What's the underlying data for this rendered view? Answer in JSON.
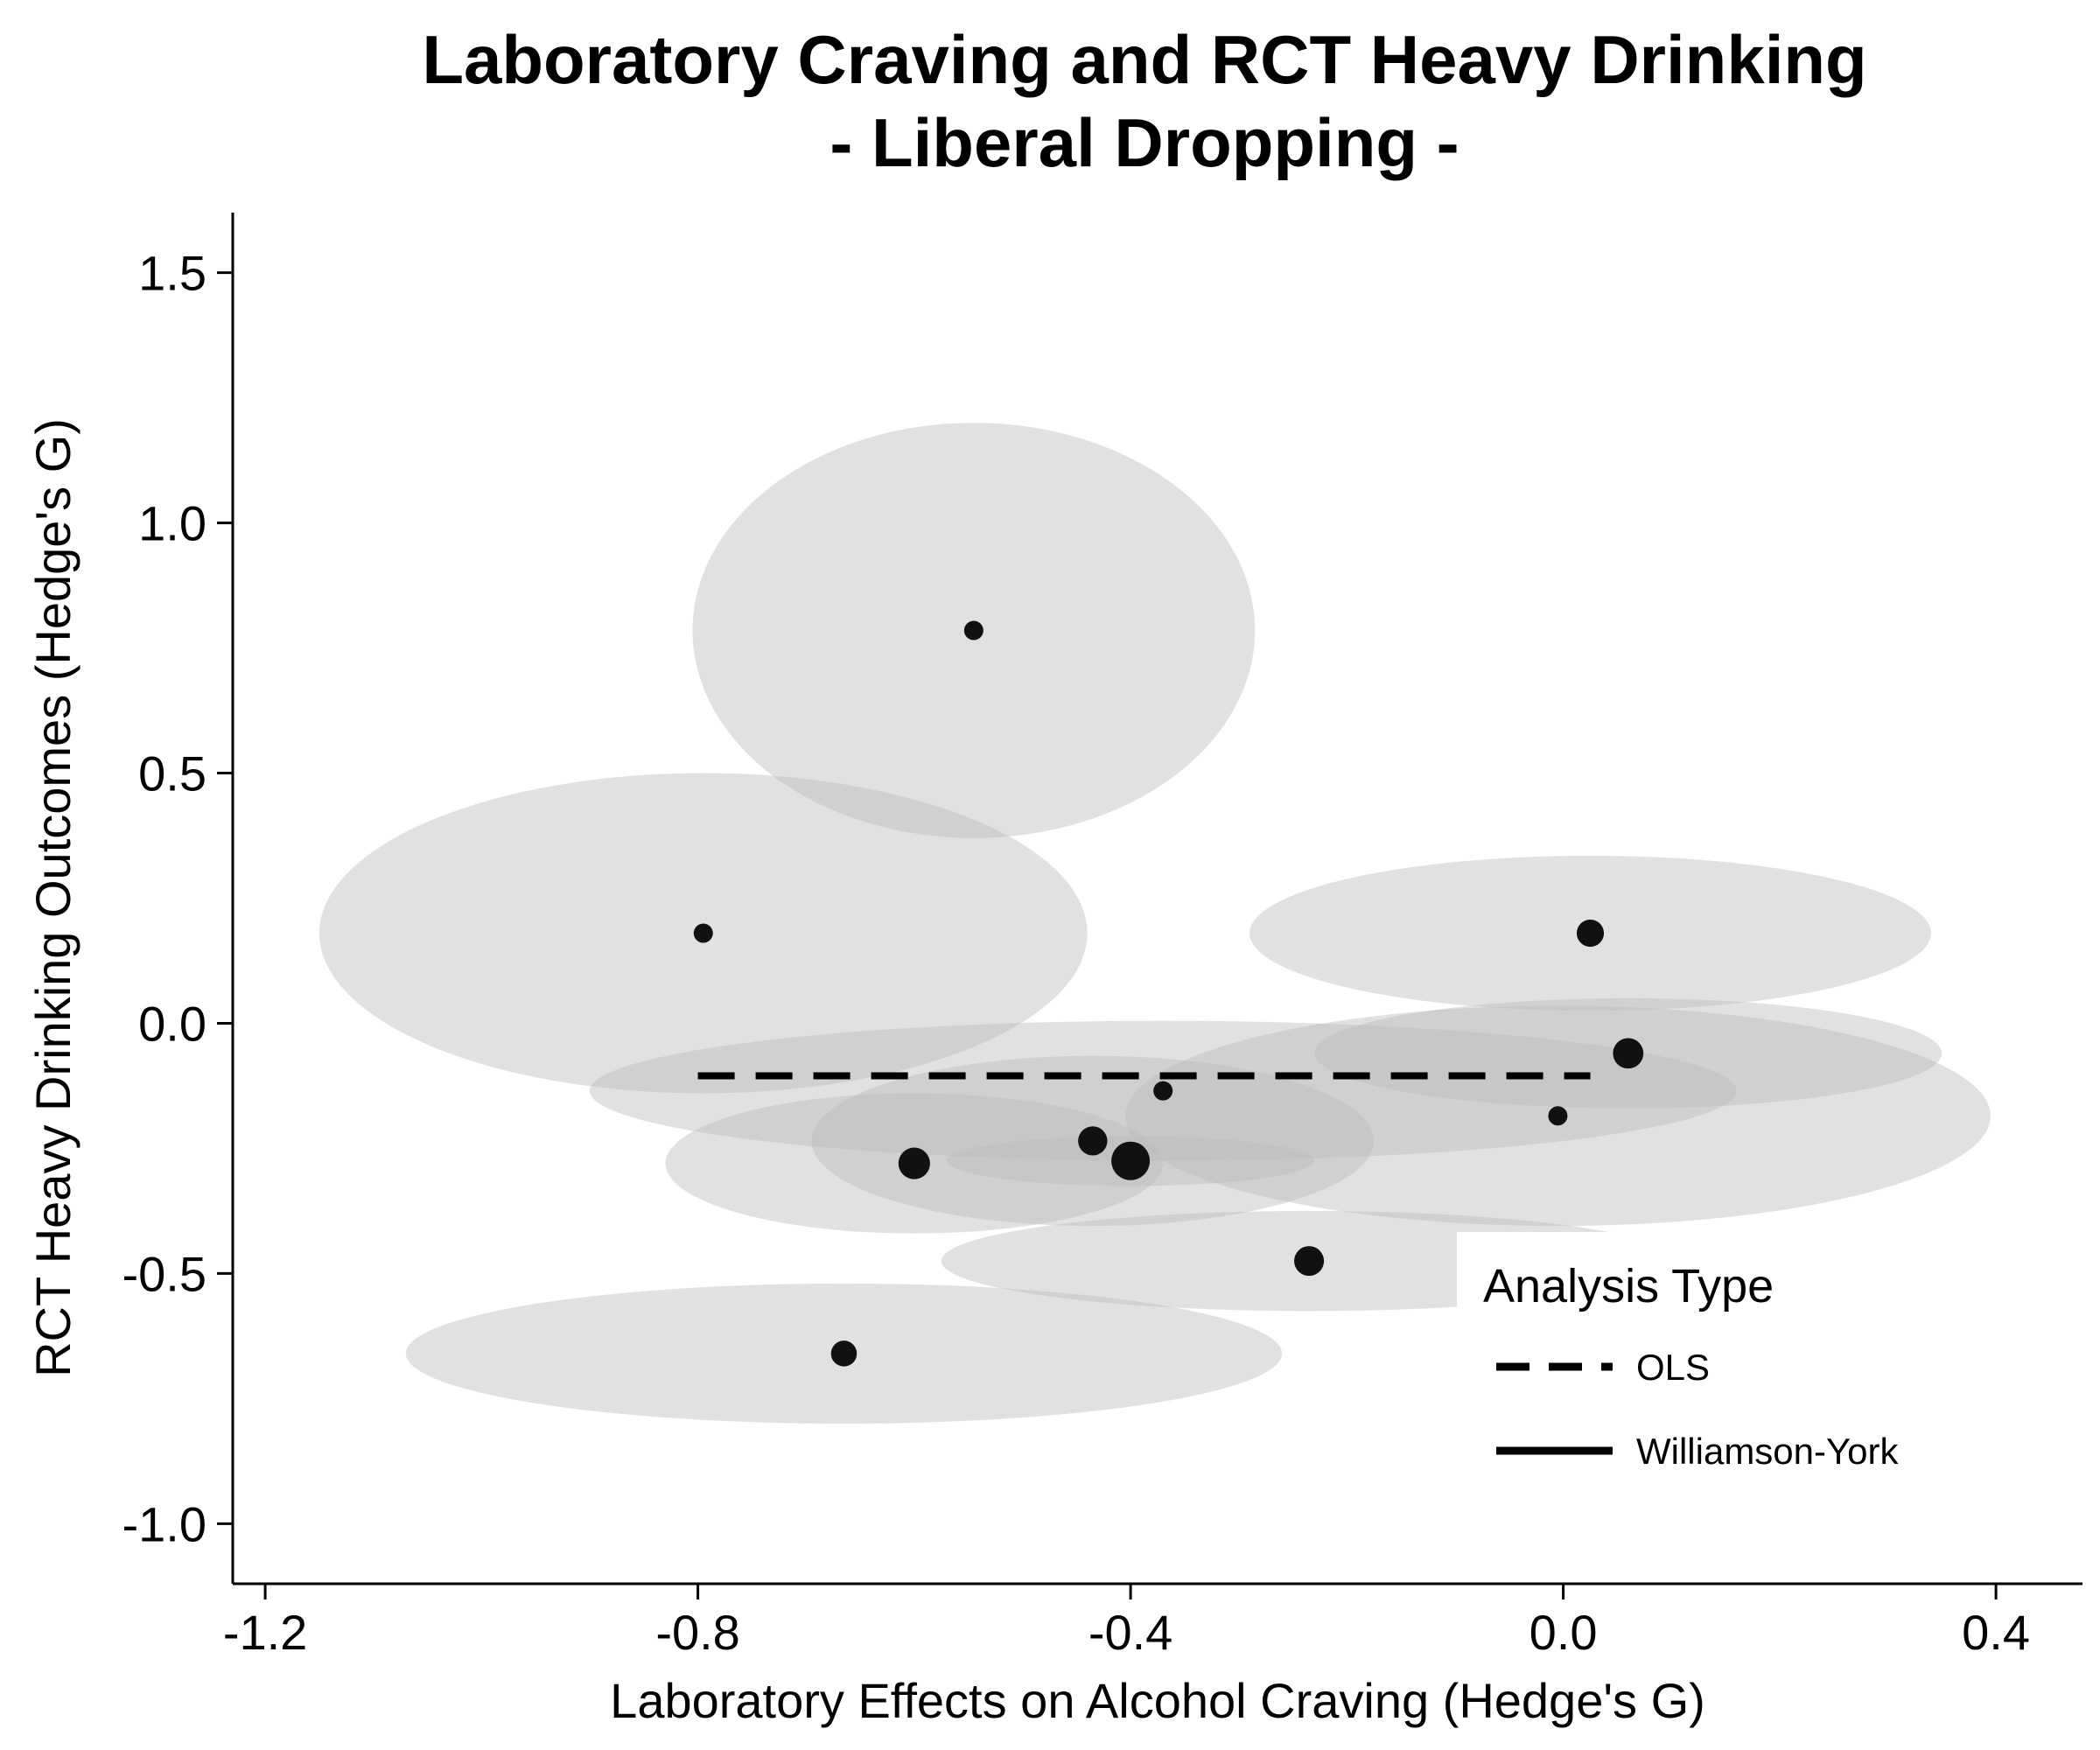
{
  "chart_data": {
    "type": "scatter",
    "title_lines": [
      "Laboratory Craving and RCT Heavy Drinking",
      "- Liberal Dropping -"
    ],
    "xlabel": "Laboratory Effects on Alcohol Craving (Hedge's G)",
    "ylabel": "RCT Heavy Drinking Outcomes (Hedge's G)",
    "xlim": [
      -1.23,
      0.48
    ],
    "ylim": [
      -1.12,
      1.62
    ],
    "x_ticks": [
      {
        "value": -1.2,
        "label": "-1.2"
      },
      {
        "value": -0.8,
        "label": "-0.8"
      },
      {
        "value": -0.4,
        "label": "-0.4"
      },
      {
        "value": 0.0,
        "label": "0.0"
      },
      {
        "value": 0.4,
        "label": "0.4"
      }
    ],
    "y_ticks": [
      {
        "value": 1.5,
        "label": "1.5"
      },
      {
        "value": 1.0,
        "label": "1.0"
      },
      {
        "value": 0.5,
        "label": "0.5"
      },
      {
        "value": 0.0,
        "label": "0.0"
      },
      {
        "value": -0.5,
        "label": "-0.5"
      },
      {
        "value": -1.0,
        "label": "-1.0"
      }
    ],
    "grid": false,
    "ellipse_color": "#bdbdbd",
    "ellipse_opacity": 0.45,
    "point_color": "#111111",
    "points": [
      {
        "x": -0.545,
        "y": 0.785,
        "size": 1,
        "x_err": 0.26,
        "y_err": 0.415
      },
      {
        "x": -0.795,
        "y": 0.18,
        "size": 1,
        "x_err": 0.355,
        "y_err": 0.32
      },
      {
        "x": 0.025,
        "y": 0.18,
        "size": 2,
        "x_err": 0.315,
        "y_err": 0.155
      },
      {
        "x": 0.06,
        "y": -0.06,
        "size": 2.5,
        "x_err": 0.29,
        "y_err": 0.11
      },
      {
        "x": -0.37,
        "y": -0.135,
        "size": 1,
        "x_err": 0.53,
        "y_err": 0.14
      },
      {
        "x": -0.005,
        "y": -0.185,
        "size": 1,
        "x_err": 0.4,
        "y_err": 0.22
      },
      {
        "x": -0.435,
        "y": -0.235,
        "size": 2.3,
        "x_err": 0.26,
        "y_err": 0.17
      },
      {
        "x": -0.6,
        "y": -0.28,
        "size": 2.7,
        "x_err": 0.23,
        "y_err": 0.14
      },
      {
        "x": -0.4,
        "y": -0.275,
        "size": 4,
        "x_err": 0.17,
        "y_err": 0.05
      },
      {
        "x": -0.235,
        "y": -0.475,
        "size": 2.4,
        "x_err": 0.34,
        "y_err": 0.1
      },
      {
        "x": -0.665,
        "y": -0.66,
        "size": 1.8,
        "x_err": 0.405,
        "y_err": 0.14
      }
    ],
    "lines": [
      {
        "name": "OLS",
        "style": "dashed",
        "x": [
          -0.8,
          0.025
        ],
        "y": [
          -0.105,
          -0.105
        ]
      },
      {
        "name": "Williamson-York",
        "style": "solid",
        "x": [],
        "y": []
      }
    ],
    "legend": {
      "title": "Analysis Type",
      "position": "bottom-right",
      "entries": [
        "OLS",
        "Williamson-York"
      ]
    }
  }
}
